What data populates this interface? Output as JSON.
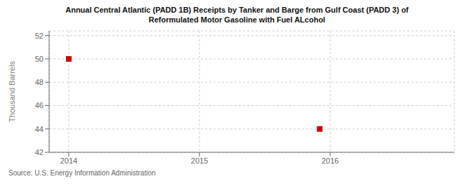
{
  "chart_data": {
    "type": "scatter",
    "title": "Annual Central Atlantic (PADD 1B) Receipts by Tanker and Barge from Gulf Coast (PADD 3) of\nReformulated Motor Gasoline with Fuel ALcohol",
    "ylabel": "Thousand Barrels",
    "annotations": [
      "Source: U.S. Energy Information Administration"
    ],
    "x": [
      2014.0,
      2015.92
    ],
    "values": [
      50,
      44
    ],
    "color": "#cc0000",
    "marker": "square",
    "xlim": [
      2013.85,
      2016.95
    ],
    "ylim": [
      42,
      52.4
    ],
    "xticks": [
      2014,
      2015,
      2016
    ],
    "yticks": [
      42,
      44,
      46,
      48,
      50,
      52
    ],
    "grid": true
  }
}
